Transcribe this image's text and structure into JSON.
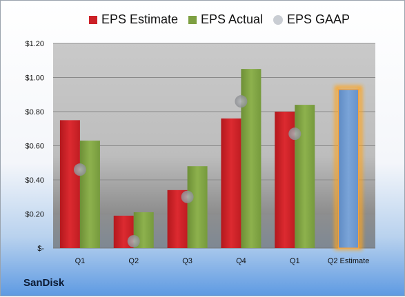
{
  "chart_data": {
    "type": "bar",
    "categories": [
      "Q1",
      "Q2",
      "Q3",
      "Q4",
      "Q1",
      "Q2 Estimate"
    ],
    "y_ticks": [
      "$-",
      "$0.20",
      "$0.40",
      "$0.60",
      "$0.80",
      "$1.00",
      "$1.20"
    ],
    "ylim": [
      0,
      1.2
    ],
    "series": [
      {
        "name": "EPS Estimate",
        "kind": "bar",
        "color": "#cc2127",
        "values": [
          0.75,
          0.19,
          0.34,
          0.76,
          0.8,
          null
        ]
      },
      {
        "name": "EPS Actual",
        "kind": "bar",
        "color": "#7ea042",
        "values": [
          0.63,
          0.21,
          0.48,
          1.05,
          0.84,
          0.93
        ],
        "highlight_color": "#6f98cc",
        "highlight_index": 5
      },
      {
        "name": "EPS GAAP",
        "kind": "marker",
        "color": "#a9aaad",
        "values": [
          0.46,
          0.04,
          0.3,
          0.86,
          0.67,
          null
        ]
      }
    ],
    "legend_position": "top",
    "grid": true
  },
  "brand": {
    "label": "SanDisk"
  }
}
